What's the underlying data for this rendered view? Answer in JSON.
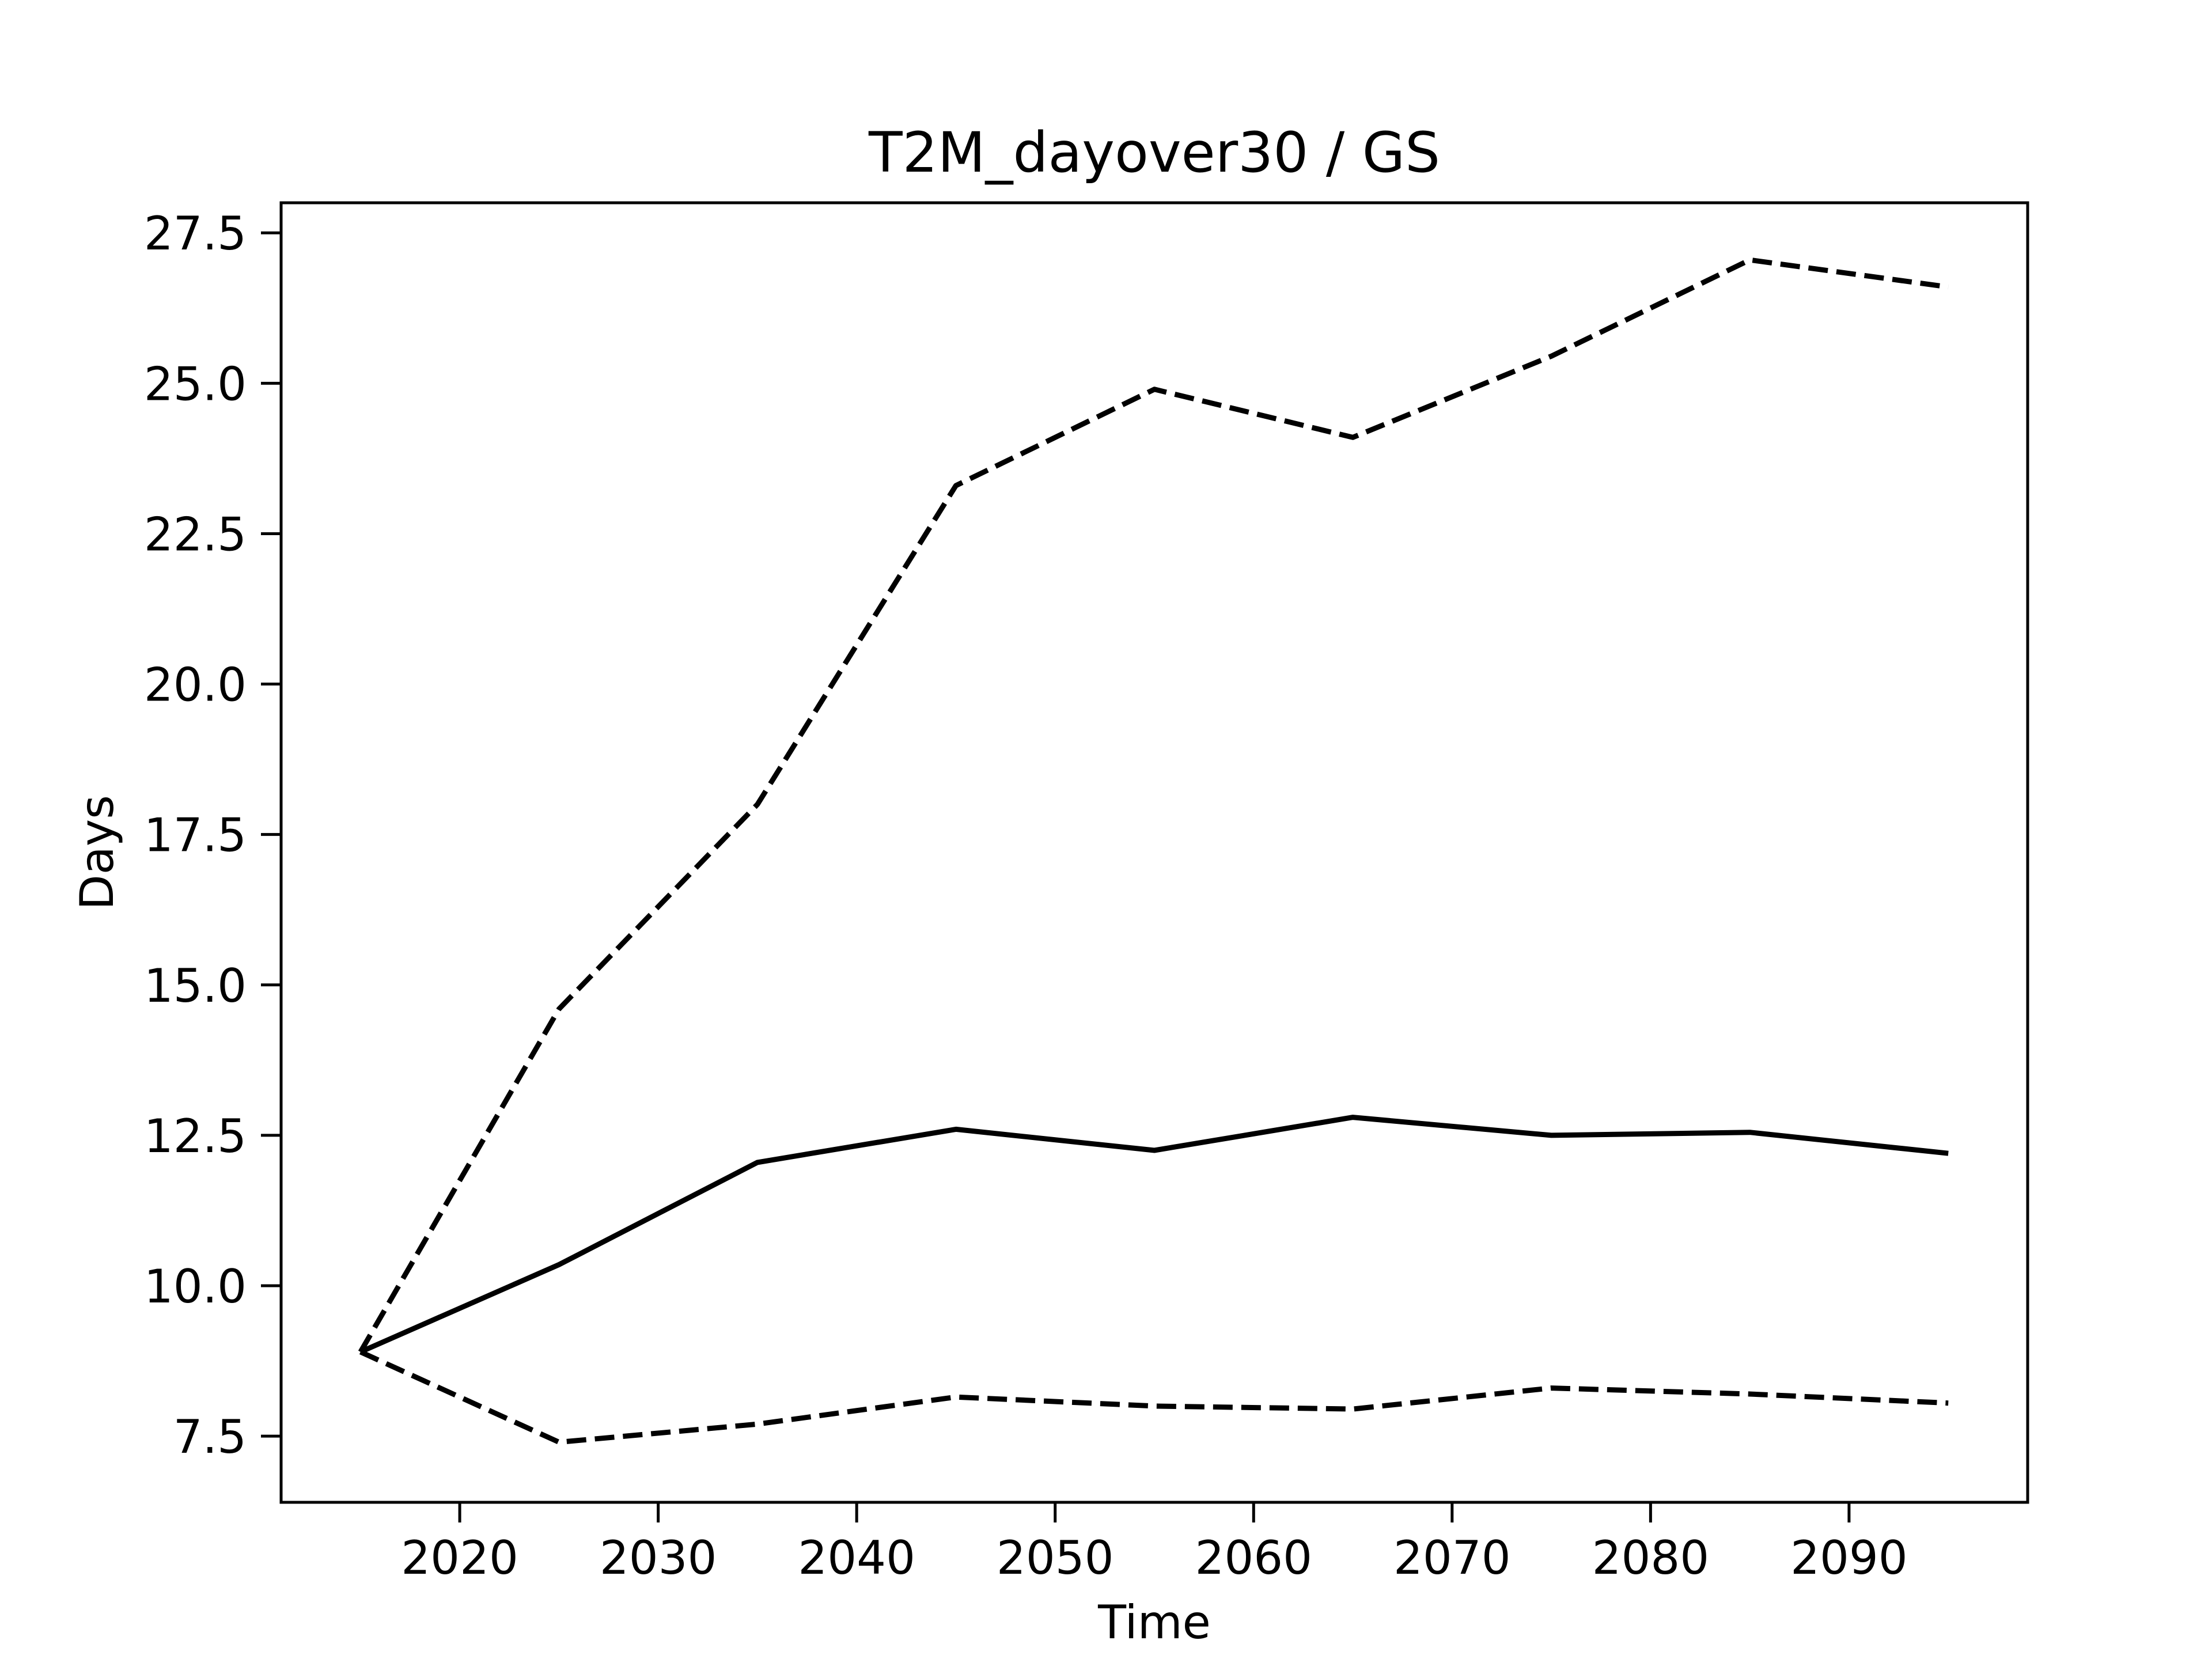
{
  "chart_data": {
    "type": "line",
    "title": "T2M_dayover30 / GS",
    "xlabel": "Time",
    "ylabel": "Days",
    "x": [
      2015,
      2025,
      2035,
      2045,
      2055,
      2065,
      2075,
      2085,
      2095
    ],
    "xlim": [
      2011,
      2099
    ],
    "ylim": [
      6.4,
      28.0
    ],
    "xticks": [
      2020,
      2030,
      2040,
      2050,
      2060,
      2070,
      2080,
      2090
    ],
    "xtick_labels": [
      "2020",
      "2030",
      "2040",
      "2050",
      "2060",
      "2070",
      "2080",
      "2090"
    ],
    "yticks": [
      7.5,
      10.0,
      12.5,
      15.0,
      17.5,
      20.0,
      22.5,
      25.0,
      27.5
    ],
    "ytick_labels": [
      "7.5",
      "10.0",
      "12.5",
      "15.0",
      "17.5",
      "20.0",
      "22.5",
      "25.0",
      "27.5"
    ],
    "grid": false,
    "series": [
      {
        "values": [
          8.9,
          7.4,
          7.7,
          8.15,
          8.0,
          7.95,
          8.3,
          8.2,
          8.05
        ],
        "color": "#000000",
        "style": "dashed"
      },
      {
        "values": [
          8.9,
          10.35,
          12.05,
          12.6,
          12.25,
          12.8,
          12.5,
          12.55,
          12.2
        ],
        "color": "#000000",
        "style": "solid"
      },
      {
        "values": [
          8.9,
          14.6,
          18.0,
          23.3,
          24.9,
          24.1,
          25.45,
          27.05,
          26.6
        ],
        "color": "#000000",
        "style": "dashed"
      }
    ]
  }
}
